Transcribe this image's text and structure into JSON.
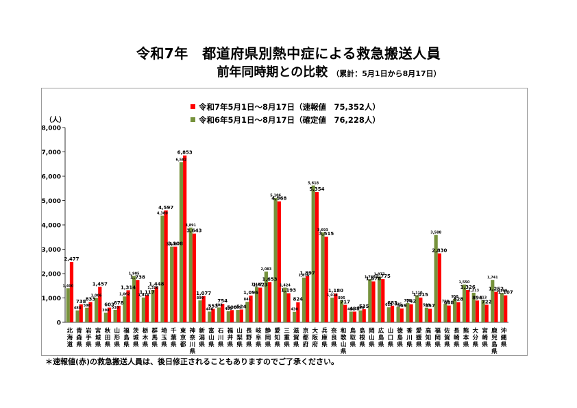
{
  "title": "令和7年　都道府県別熱中症による救急搬送人員",
  "subtitle": "前年同時期との比較",
  "subtitle_note": "（累計：5月1日から8月17日）",
  "footnote": "＊速報値(赤)の救急搬送人員は、後日修正されることもありますのでご了承ください。",
  "chart_data": {
    "type": "bar",
    "ylabel": "（人）",
    "ylim": [
      0,
      8000
    ],
    "yticks": [
      0,
      1000,
      2000,
      3000,
      4000,
      5000,
      6000,
      7000,
      8000
    ],
    "ytick_labels": [
      "0",
      "1,000",
      "2,000",
      "3,000",
      "4,000",
      "5,000",
      "6,000",
      "7,000",
      "8,000"
    ],
    "legend_position": "top-left",
    "categories": [
      "北海道",
      "青森県",
      "岩手県",
      "宮城県",
      "秋田県",
      "山形県",
      "福島県",
      "茨城県",
      "栃木県",
      "群馬県",
      "埼玉県",
      "千葉県",
      "東京都",
      "神奈川県",
      "新潟県",
      "富山県",
      "石川県",
      "福井県",
      "山梨県",
      "長野県",
      "岐阜県",
      "静岡県",
      "愛知県",
      "三重県",
      "滋賀県",
      "京都府",
      "大阪府",
      "兵庫県",
      "奈良県",
      "和歌山県",
      "鳥取県",
      "島根県",
      "岡山県",
      "広島県",
      "山口県",
      "徳島県",
      "香川県",
      "愛媛県",
      "高知県",
      "福岡県",
      "佐賀県",
      "長崎県",
      "熊本県",
      "大分県",
      "宮崎県",
      "鹿児島県",
      "沖縄県"
    ],
    "series": [
      {
        "name": "令和6年5月1日～8月17日（確定値　76,228人）",
        "color": "#76923c",
        "values": [
          1400,
          488,
          598,
          1006,
          398,
          510,
          1062,
          1905,
          1018,
          1326,
          4380,
          3108,
          6582,
          3891,
          899,
          440,
          608,
          455,
          505,
          841,
          1447,
          2083,
          5106,
          1424,
          430,
          1836,
          5618,
          3693,
          1014,
          895,
          438,
          488,
          1765,
          1877,
          615,
          635,
          788,
          1110,
          599,
          3588,
          758,
          958,
          1550,
          1213,
          913,
          1741,
          1199
        ],
        "labels": [
          "1,400",
          "488",
          "598",
          "1,006",
          "398",
          "510",
          "1,062",
          "1,905",
          "1,018",
          "1,326",
          "4,380",
          "3,108",
          "6,582",
          "3,891",
          "899",
          "440",
          "608",
          "455",
          "505",
          "841",
          "1,447",
          "2,083",
          "5,106",
          "1,424",
          "430",
          "1,836",
          "5,618",
          "3,693",
          "1,014",
          "895",
          "438",
          "488",
          "1,765",
          "1,877",
          "615",
          "635",
          "788",
          "1,110",
          "599",
          "3,588",
          "758",
          "958",
          "1,550",
          "1,213",
          "913",
          "1,741",
          "1,199"
        ]
      },
      {
        "name": "令和7年5月1日～8月17日（速報値　75,352人）",
        "color": "#ff0000",
        "values": [
          2477,
          738,
          833,
          1457,
          603,
          678,
          1314,
          1738,
          1117,
          1448,
          4597,
          3108,
          6853,
          3643,
          1077,
          553,
          754,
          500,
          524,
          1096,
          1423,
          1653,
          4968,
          1193,
          824,
          1897,
          5354,
          3515,
          1180,
          717,
          438,
          535,
          1678,
          1775,
          683,
          569,
          742,
          1015,
          557,
          2830,
          688,
          828,
          1326,
          894,
          722,
          1252,
          1107
        ],
        "labels": [
          "2,477",
          "738",
          "833",
          "1,457",
          "603",
          "678",
          "1,314",
          "1,738",
          "1,117",
          "1,448",
          "4,597",
          "3,108",
          "6,853",
          "3,643",
          "1,077",
          "553",
          "754",
          "500",
          "524",
          "1,096",
          "1,423",
          "1,653",
          "4,968",
          "1,193",
          "824",
          "1,897",
          "5,354",
          "3,515",
          "1,180",
          "717",
          "438",
          "535",
          "1,678",
          "1,775",
          "683",
          "569",
          "742",
          "1,015",
          "557",
          "2,830",
          "688",
          "828",
          "1,326",
          "894",
          "722",
          "1,252",
          "1,107"
        ]
      }
    ]
  }
}
